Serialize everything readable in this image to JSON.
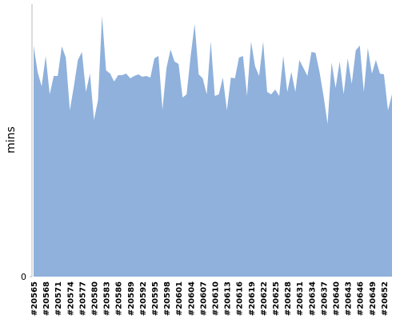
{
  "chart_data": {
    "type": "area",
    "y_label": "mins",
    "color": "#8fb1dc",
    "categories": [
      "#20565",
      null,
      null,
      "#20568",
      null,
      null,
      "#20571",
      null,
      null,
      "#20574",
      null,
      null,
      "#20577",
      null,
      null,
      "#20580",
      null,
      null,
      "#20583",
      null,
      null,
      "#20586",
      null,
      null,
      "#20589",
      null,
      null,
      "#20592",
      null,
      null,
      "#20595",
      null,
      null,
      "#20598",
      null,
      null,
      "#20601",
      null,
      null,
      "#20604",
      null,
      null,
      "#20607",
      null,
      null,
      "#20610",
      null,
      null,
      "#20613",
      null,
      null,
      "#20616",
      null,
      null,
      "#20619",
      null,
      null,
      "#20622",
      null,
      null,
      "#20625",
      null,
      null,
      "#20628",
      null,
      null,
      "#20631",
      null,
      null,
      "#20634",
      null,
      null,
      "#20637",
      null,
      null,
      "#20640",
      null,
      null,
      "#20643",
      null,
      null,
      "#20646",
      null,
      null,
      "#20649",
      null,
      null,
      "#20652",
      null,
      null
    ],
    "values": [
      289,
      256,
      238,
      276,
      228,
      251,
      251,
      288,
      274,
      208,
      238,
      271,
      281,
      231,
      254,
      196,
      221,
      326,
      258,
      254,
      244,
      252,
      252,
      254,
      248,
      251,
      253,
      250,
      251,
      249,
      273,
      276,
      209,
      261,
      284,
      269,
      266,
      224,
      228,
      276,
      316,
      253,
      248,
      228,
      294,
      226,
      228,
      249,
      208,
      249,
      248,
      274,
      276,
      226,
      294,
      263,
      251,
      294,
      231,
      228,
      234,
      226,
      276,
      231,
      256,
      231,
      271,
      261,
      251,
      281,
      280,
      256,
      226,
      191,
      268,
      236,
      269,
      228,
      273,
      241,
      283,
      289,
      231,
      286,
      254,
      271,
      254,
      253,
      208,
      228
    ],
    "ylim": [
      0,
      341
    ],
    "yticks": [
      0
    ]
  }
}
